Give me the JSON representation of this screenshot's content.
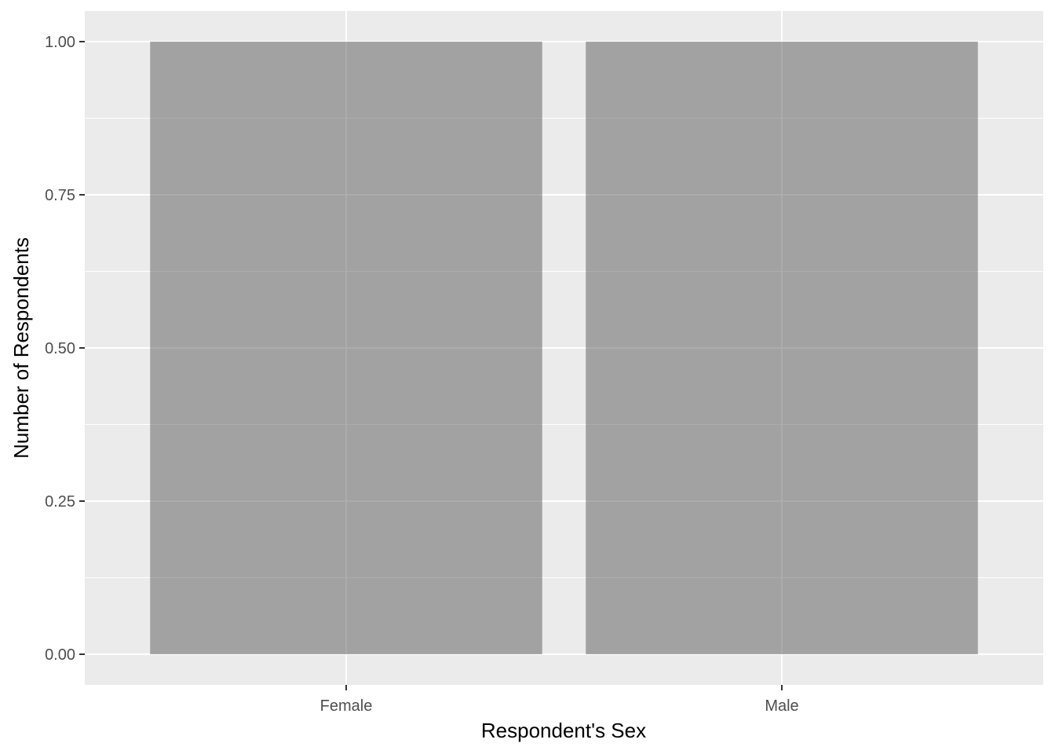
{
  "chart_data": {
    "type": "bar",
    "categories": [
      "Female",
      "Male"
    ],
    "values": [
      1,
      1
    ],
    "xlabel": "Respondent's Sex",
    "ylabel": "Number of Respondents",
    "ylim": [
      -0.05,
      1.05
    ],
    "yticks": [
      0,
      0.25,
      0.5,
      0.75,
      1
    ],
    "ytick_labels": [
      "0.00",
      "0.25",
      "0.50",
      "0.75",
      "1.00"
    ],
    "grid": true,
    "legend": "none"
  },
  "colors": {
    "panel_background": "#ebebeb",
    "grid_major": "#ffffff",
    "bar_fill": "#595959",
    "bar_opacity": 0.5,
    "tick_text": "#4d4d4d",
    "axis_title": "#000000"
  }
}
